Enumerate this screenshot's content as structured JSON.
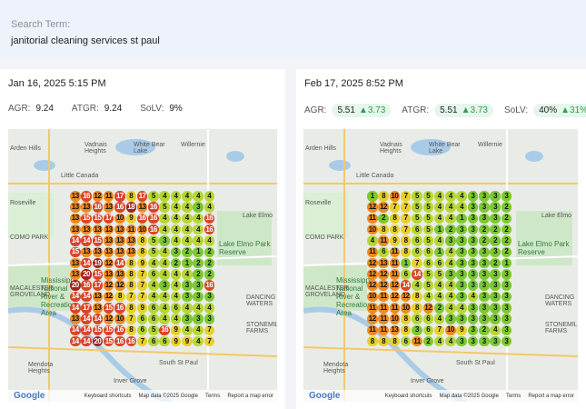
{
  "search": {
    "label": "Search Term:",
    "term": "janitorial cleaning services st paul"
  },
  "panels": [
    {
      "date": "Jan 16, 2025 5:15 PM",
      "agr_label": "AGR:",
      "agr": "9.24",
      "atgr_label": "ATGR:",
      "atgr": "9.24",
      "solv_label": "SoLV:",
      "solv": "9%",
      "grid": [
        [
          "13",
          "16",
          "12",
          "11",
          "17",
          "8",
          "17",
          "5",
          "4",
          "4",
          "4",
          "4",
          "4"
        ],
        [
          "13",
          "13",
          "16",
          "13",
          "16",
          "18",
          "13",
          "16",
          "5",
          "4",
          "4",
          "3",
          "4"
        ],
        [
          "13",
          "15",
          "15",
          "17",
          "10",
          "9",
          "16",
          "16",
          "4",
          "4",
          "4",
          "4",
          "16"
        ],
        [
          "13",
          "13",
          "13",
          "13",
          "13",
          "11",
          "10",
          "16",
          "4",
          "4",
          "4",
          "4",
          "16"
        ],
        [
          "14",
          "14",
          "15",
          "13",
          "13",
          "13",
          "8",
          "5",
          "3",
          "4",
          "4",
          "4",
          "4"
        ],
        [
          "15",
          "13",
          "13",
          "13",
          "13",
          "13",
          "8",
          "5",
          "4",
          "3",
          "2",
          "1",
          "2"
        ],
        [
          "13",
          "14",
          "19",
          "12",
          "14",
          "8",
          "9",
          "4",
          "4",
          "2",
          "1",
          "2",
          "2"
        ],
        [
          "13",
          "20",
          "15",
          "13",
          "13",
          "8",
          "7",
          "6",
          "4",
          "4",
          "4",
          "2",
          "2"
        ],
        [
          "20",
          "16",
          "17",
          "12",
          "12",
          "8",
          "7",
          "4",
          "3",
          "4",
          "3",
          "3",
          "16"
        ],
        [
          "14",
          "14",
          "13",
          "12",
          "8",
          "7",
          "7",
          "4",
          "4",
          "4",
          "3",
          "3",
          "3"
        ],
        [
          "14",
          "17",
          "13",
          "15",
          "16",
          "8",
          "9",
          "6",
          "4",
          "6",
          "4",
          "4",
          "4"
        ],
        [
          "13",
          "14",
          "14",
          "12",
          "10",
          "7",
          "6",
          "6",
          "4",
          "4",
          "3",
          "3",
          "3"
        ],
        [
          "14",
          "14",
          "15",
          "15",
          "16",
          "8",
          "6",
          "5",
          "16",
          "9",
          "4",
          "4",
          "7"
        ],
        [
          "14",
          "14",
          "20",
          "15",
          "16",
          "16",
          "7",
          "6",
          "6",
          "9",
          "9",
          "4",
          "7"
        ]
      ],
      "map_footer": {
        "shortcuts": "Keyboard shortcuts",
        "data": "Map data ©2025 Google",
        "terms": "Terms",
        "report": "Report a map error"
      }
    },
    {
      "date": "Feb 17, 2025 8:52 PM",
      "agr_label": "AGR:",
      "agr": "5.51",
      "agr_delta": "▲3.73",
      "atgr_label": "ATGR:",
      "atgr": "5.51",
      "atgr_delta": "▲3.73",
      "solv_label": "SoLV:",
      "solv": "40%",
      "solv_delta": "▲31%",
      "grid": [
        [
          "1",
          "8",
          "10",
          "7",
          "5",
          "5",
          "4",
          "4",
          "4",
          "3",
          "3",
          "3",
          "3"
        ],
        [
          "12",
          "12",
          "7",
          "7",
          "5",
          "5",
          "4",
          "4",
          "4",
          "3",
          "3",
          "3",
          "2"
        ],
        [
          "11",
          "2",
          "8",
          "7",
          "5",
          "5",
          "4",
          "4",
          "1",
          "3",
          "3",
          "3",
          "2"
        ],
        [
          "10",
          "8",
          "8",
          "7",
          "6",
          "5",
          "1",
          "2",
          "3",
          "3",
          "2",
          "2",
          "2"
        ],
        [
          "4",
          "11",
          "9",
          "8",
          "6",
          "5",
          "4",
          "3",
          "3",
          "3",
          "2",
          "2",
          "2"
        ],
        [
          "11",
          "6",
          "11",
          "8",
          "6",
          "6",
          "1",
          "4",
          "3",
          "3",
          "3",
          "3",
          "2"
        ],
        [
          "12",
          "13",
          "11",
          "1",
          "7",
          "6",
          "6",
          "4",
          "3",
          "3",
          "3",
          "2",
          "1"
        ],
        [
          "12",
          "12",
          "11",
          "6",
          "14",
          "5",
          "5",
          "3",
          "3",
          "3",
          "3",
          "3",
          "3"
        ],
        [
          "12",
          "12",
          "12",
          "14",
          "4",
          "5",
          "4",
          "4",
          "3",
          "3",
          "3",
          "3",
          "3"
        ],
        [
          "10",
          "11",
          "12",
          "12",
          "8",
          "4",
          "4",
          "4",
          "3",
          "4",
          "3",
          "3",
          "3"
        ],
        [
          "11",
          "11",
          "11",
          "10",
          "8",
          "12",
          "2",
          "4",
          "4",
          "3",
          "3",
          "3",
          "3"
        ],
        [
          "12",
          "11",
          "10",
          "8",
          "6",
          "6",
          "4",
          "3",
          "3",
          "3",
          "3",
          "3",
          "3"
        ],
        [
          "11",
          "11",
          "13",
          "8",
          "3",
          "6",
          "7",
          "10",
          "9",
          "3",
          "2",
          "4",
          "3"
        ],
        [
          "8",
          "8",
          "8",
          "6",
          "11",
          "2",
          "4",
          "4",
          "3",
          "3",
          "3",
          "3",
          "3"
        ]
      ],
      "map_footer": {
        "shortcuts": "Keyboard shortcuts",
        "data": "Map data ©2025 Google",
        "terms": "Terms",
        "report": "Report a map error"
      }
    }
  ],
  "map_labels": {
    "arden_hills": "Arden Hills",
    "vadnais": "Vadnais Heights",
    "white_bear_lake": "White Bear Lake",
    "willernie": "Willernie",
    "little_canada": "Little Canada",
    "roseville": "Roseville",
    "lake_elmo": "Lake Elmo",
    "lake_elmo_park": "Lake Elmo Park Reserve",
    "como_park": "COMO PARK",
    "mississippi": "Mississippi National River & Recreation Area",
    "macalester": "MACALESTER GROVELAND",
    "dancing_waters": "DANCING WATERS",
    "stonemill": "STONEMILL FARMS",
    "mendota": "Mendota Heights",
    "south_st_paul": "South St Paul",
    "inver_grove": "Inver Grove",
    "google": "Google"
  },
  "colors": {
    "green": "#7cc832",
    "lime": "#b6d636",
    "yellow": "#e8cf2c",
    "orange": "#ec8a22",
    "red": "#d9452a",
    "darkred": "#a8201e",
    "pill_bg": "#e6f6ec",
    "delta": "#2e9e4e"
  }
}
